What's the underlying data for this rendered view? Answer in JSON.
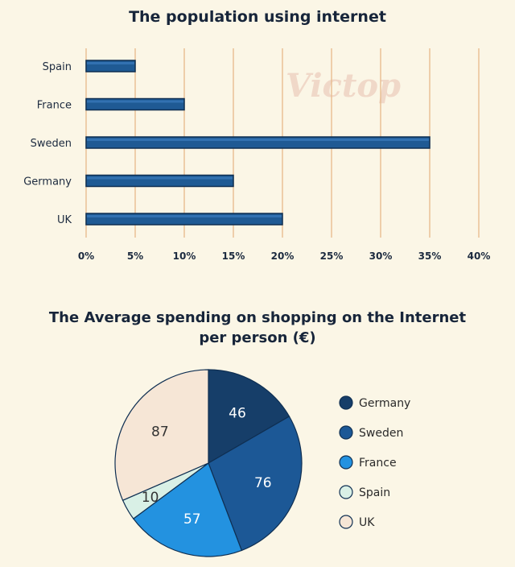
{
  "watermark": "Victop",
  "chart_data": [
    {
      "type": "bar",
      "orientation": "horizontal",
      "title": "The population using internet",
      "categories": [
        "Spain",
        "France",
        "Sweden",
        "Germany",
        "UK"
      ],
      "values": [
        5,
        10,
        35,
        15,
        20
      ],
      "xlim": [
        0,
        40
      ],
      "xticks": [
        "0%",
        "5%",
        "10%",
        "15%",
        "20%",
        "25%",
        "30%",
        "35%",
        "40%"
      ],
      "grid": "vertical",
      "bar_color": "#1f5a94"
    },
    {
      "type": "pie",
      "title_line1": "The Average spending on shopping on the Internet",
      "title_line2": "per person (€)",
      "slices": [
        {
          "label": "Germany",
          "value": 46,
          "color": "#163e69",
          "text_color": "#ffffff"
        },
        {
          "label": "Sweden",
          "value": 76,
          "color": "#1c5896",
          "text_color": "#ffffff"
        },
        {
          "label": "France",
          "value": 57,
          "color": "#2392e0",
          "text_color": "#ffffff"
        },
        {
          "label": "Spain",
          "value": 10,
          "color": "#d9f0e6",
          "text_color": "#333333"
        },
        {
          "label": "UK",
          "value": 87,
          "color": "#f6e6d6",
          "text_color": "#333333"
        }
      ],
      "legend_position": "right"
    }
  ]
}
